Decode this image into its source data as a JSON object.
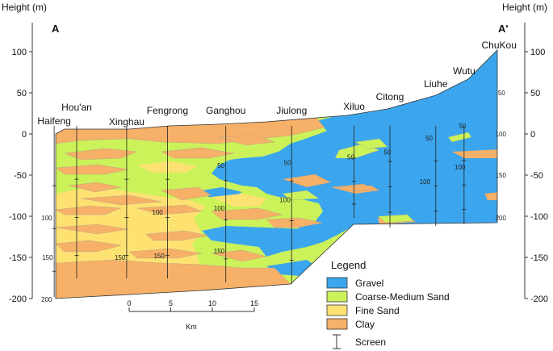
{
  "axes": {
    "left_title": "Height (m)",
    "right_title": "Height (m)",
    "ticks": [
      100,
      50,
      0,
      -50,
      -100,
      -150,
      -200
    ],
    "range": [
      -200,
      100
    ]
  },
  "section": {
    "start_label": "A",
    "end_label": "A'"
  },
  "sites": [
    {
      "name": "Haifeng",
      "km": -9
    },
    {
      "name": "Hou'an",
      "km": -6.3
    },
    {
      "name": "Xinghau",
      "km": -0.3
    },
    {
      "name": "Fengrong",
      "km": 4.6
    },
    {
      "name": "Ganghou",
      "km": 11.6
    },
    {
      "name": "Jiulong",
      "km": 19.5
    },
    {
      "name": "Xiluo",
      "km": 27
    },
    {
      "name": "Citong",
      "km": 31.3
    },
    {
      "name": "Liuhe",
      "km": 36.8
    },
    {
      "name": "Wutu",
      "km": 40.2
    },
    {
      "name": "ChuKou",
      "km": 44.4
    }
  ],
  "scale_bar": {
    "ticks": [
      "0",
      "5",
      "10",
      "15"
    ],
    "unit": "Km"
  },
  "contour_labels": [
    {
      "text": "50",
      "km": 11,
      "h": -38
    },
    {
      "text": "50",
      "km": 19,
      "h": -35
    },
    {
      "text": "50",
      "km": 26.6,
      "h": -28
    },
    {
      "text": "50",
      "km": 31,
      "h": -22
    },
    {
      "text": "50",
      "km": 36,
      "h": -5
    },
    {
      "text": "50",
      "km": 40,
      "h": 10
    },
    {
      "text": "50",
      "km": 44.7,
      "h": 50
    },
    {
      "text": "100",
      "km": 3.4,
      "h": -95
    },
    {
      "text": "100",
      "km": 10.8,
      "h": -90
    },
    {
      "text": "100",
      "km": 18.7,
      "h": -80
    },
    {
      "text": "100",
      "km": 35.5,
      "h": -58
    },
    {
      "text": "100",
      "km": 39.7,
      "h": -40
    },
    {
      "text": "100",
      "km": 44.6,
      "h": 0
    },
    {
      "text": "100",
      "km": -9.9,
      "h": -102
    },
    {
      "text": "150",
      "km": -1.1,
      "h": -150
    },
    {
      "text": "150",
      "km": 3.6,
      "h": -148
    },
    {
      "text": "150",
      "km": 10.8,
      "h": -142
    },
    {
      "text": "150",
      "km": 44.6,
      "h": -50
    },
    {
      "text": "150",
      "km": -9.8,
      "h": -150
    },
    {
      "text": "200",
      "km": 44.6,
      "h": -102
    },
    {
      "text": "200",
      "km": -9.9,
      "h": -201
    }
  ],
  "legend": {
    "title": "Legend",
    "items": [
      {
        "label": "Gravel",
        "color": "#3ba6ee"
      },
      {
        "label": "Coarse-Medium Sand",
        "color": "#ccf25a"
      },
      {
        "label": "Fine Sand",
        "color": "#fde272"
      },
      {
        "label": "Clay",
        "color": "#f6b067"
      }
    ],
    "screen_label": "Screen"
  }
}
